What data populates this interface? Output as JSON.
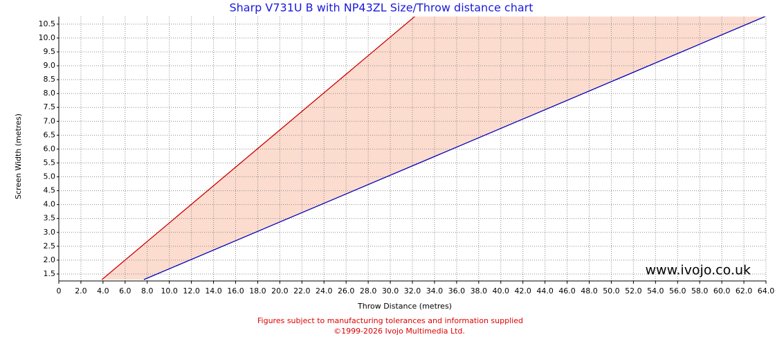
{
  "chart_data": {
    "type": "line",
    "title": "Sharp V731U B with NP43ZL Size/Throw distance chart",
    "x_label": "Throw Distance (metres)",
    "y_label": "Screen Width (metres)",
    "watermark": "www.ivojo.co.uk",
    "footer": [
      "Figures subject to manufacturing tolerances and information supplied",
      "©1999-2026 Ivojo Multimedia Ltd."
    ],
    "fill_color": "#fcdccf",
    "grid": true,
    "series": [
      {
        "color": "#cc0000",
        "x": [
          3.9,
          32.2
        ],
        "values": [
          1.3,
          10.77
        ]
      },
      {
        "color": "#0000bb",
        "x": [
          7.7,
          63.9
        ],
        "values": [
          1.3,
          10.77
        ]
      }
    ],
    "xlim": [
      0,
      64
    ],
    "ylim": [
      1.25,
      10.77
    ],
    "xticks": [
      0,
      {
        "value": 2,
        "label": "2.0"
      },
      {
        "value": 4,
        "label": "4.0"
      },
      {
        "value": 6,
        "label": "6.0"
      },
      {
        "value": 8,
        "label": "8.0"
      },
      {
        "value": 10,
        "label": "10.0"
      },
      {
        "value": 12,
        "label": "12.0"
      },
      {
        "value": 14,
        "label": "14.0"
      },
      {
        "value": 16,
        "label": "16.0"
      },
      {
        "value": 18,
        "label": "18.0"
      },
      {
        "value": 20,
        "label": "20.0"
      },
      {
        "value": 22,
        "label": "22.0"
      },
      {
        "value": 24,
        "label": "24.0"
      },
      {
        "value": 26,
        "label": "26.0"
      },
      {
        "value": 28,
        "label": "28.0"
      },
      {
        "value": 30,
        "label": "30.0"
      },
      {
        "value": 32,
        "label": "32.0"
      },
      {
        "value": 34,
        "label": "34.0"
      },
      {
        "value": 36,
        "label": "36.0"
      },
      {
        "value": 38,
        "label": "38.0"
      },
      {
        "value": 40,
        "label": "40.0"
      },
      {
        "value": 42,
        "label": "42.0"
      },
      {
        "value": 44,
        "label": "44.0"
      },
      {
        "value": 46,
        "label": "46.0"
      },
      {
        "value": 48,
        "label": "48.0"
      },
      {
        "value": 50,
        "label": "50.0"
      },
      {
        "value": 52,
        "label": "52.0"
      },
      {
        "value": 54,
        "label": "54.0"
      },
      {
        "value": 56,
        "label": "56.0"
      },
      {
        "value": 58,
        "label": "58.0"
      },
      {
        "value": 60,
        "label": "60.0"
      },
      {
        "value": 62,
        "label": "62.0"
      },
      {
        "value": 64,
        "label": "64.0"
      }
    ],
    "yticks": [
      1.5,
      {
        "value": 2,
        "label": "2.0"
      },
      2.5,
      {
        "value": 3,
        "label": "3.0"
      },
      3.5,
      {
        "value": 4,
        "label": "4.0"
      },
      4.5,
      {
        "value": 5,
        "label": "5.0"
      },
      5.5,
      {
        "value": 6,
        "label": "6.0"
      },
      6.5,
      {
        "value": 7,
        "label": "7.0"
      },
      7.5,
      {
        "value": 8,
        "label": "8.0"
      },
      8.5,
      {
        "value": 9,
        "label": "9.0"
      },
      9.5,
      {
        "value": 10,
        "label": "10.0"
      },
      10.5
    ]
  }
}
